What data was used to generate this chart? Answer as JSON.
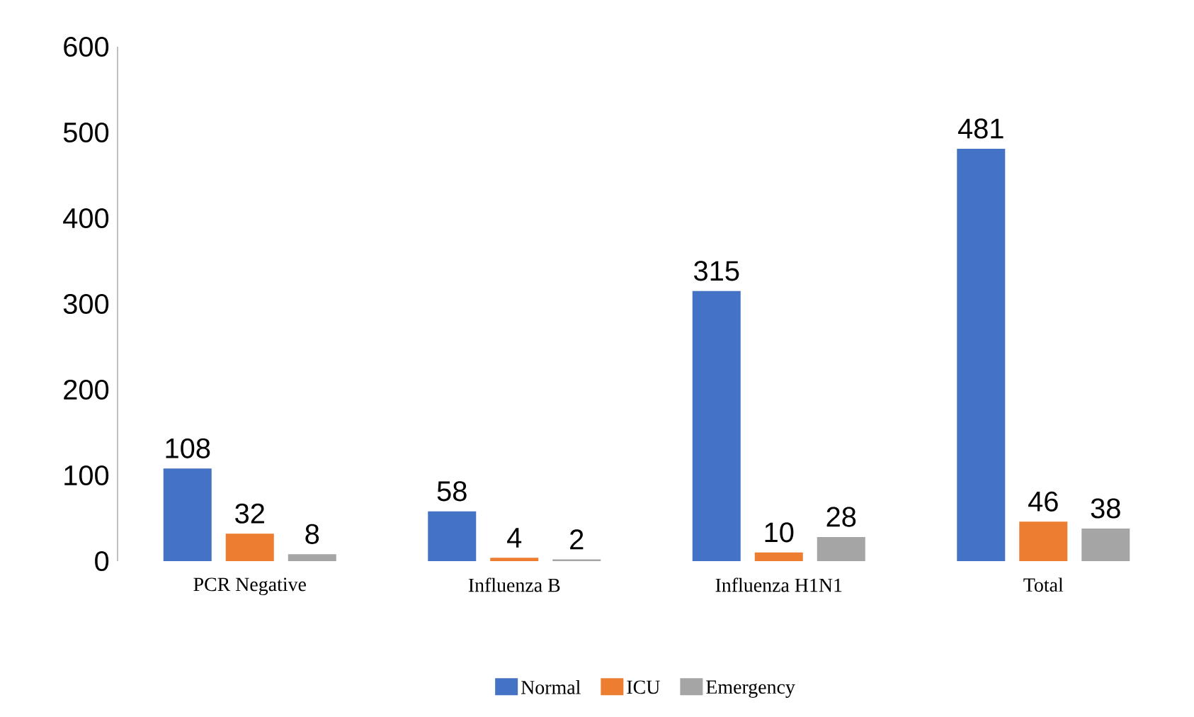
{
  "chart_data": {
    "type": "bar",
    "categories": [
      "PCR Negative",
      "Influenza B",
      "Influenza H1N1",
      "Total"
    ],
    "series": [
      {
        "name": "Normal",
        "color": "#4472c4",
        "values": [
          108,
          58,
          315,
          481
        ]
      },
      {
        "name": "ICU",
        "color": "#ed7d31",
        "values": [
          32,
          4,
          10,
          46
        ]
      },
      {
        "name": "Emergency",
        "color": "#a5a5a5",
        "values": [
          8,
          2,
          28,
          38
        ]
      }
    ],
    "ylim": [
      0,
      600
    ],
    "yticks": [
      0,
      100,
      200,
      300,
      400,
      500,
      600
    ],
    "data_labels": true,
    "legend": "bottom"
  }
}
